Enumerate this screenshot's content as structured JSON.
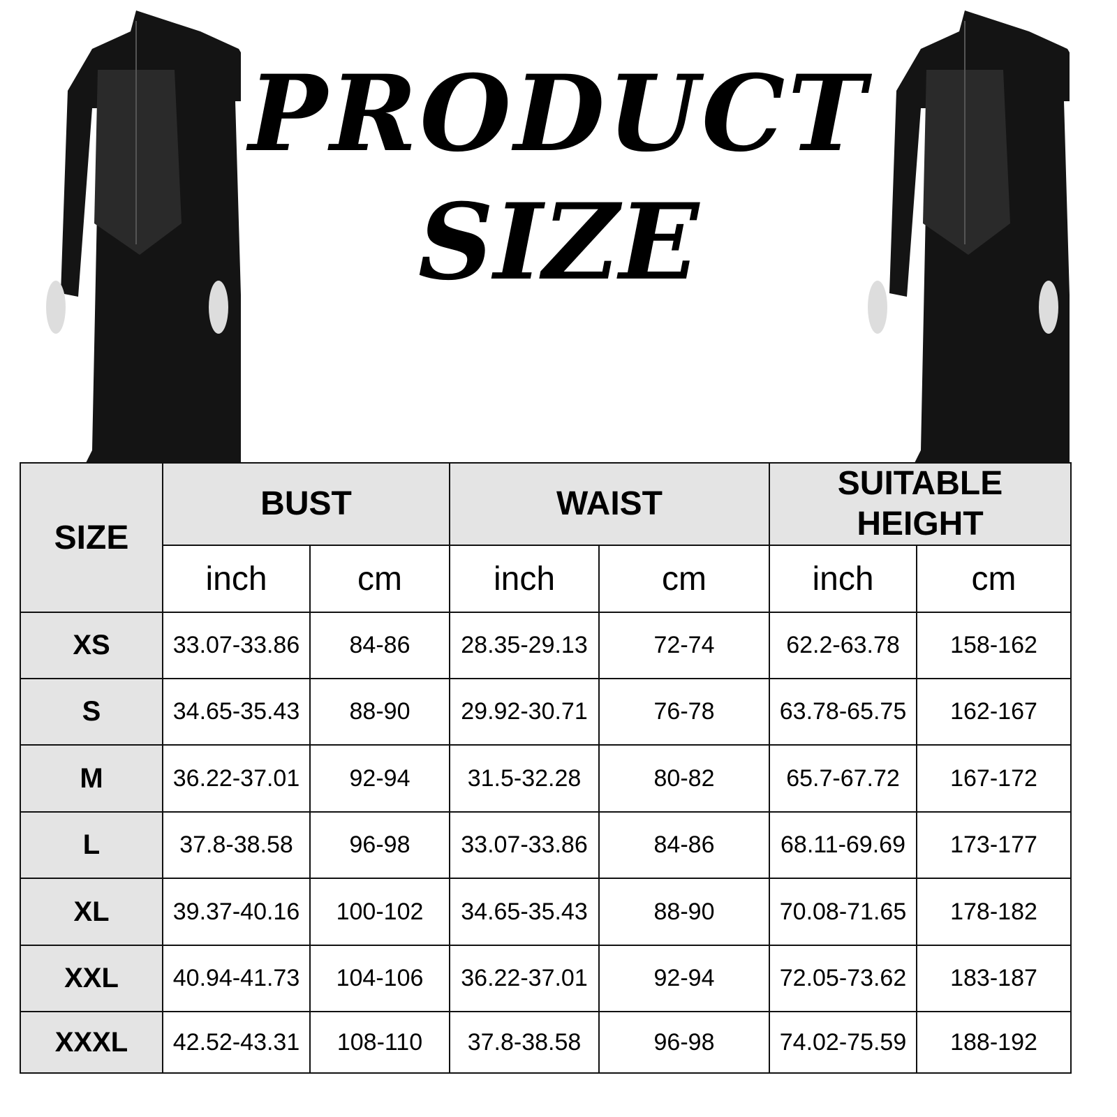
{
  "title": {
    "line1": "PRODUCT",
    "line2": "SIZE"
  },
  "table": {
    "size_header": "SIZE",
    "groups": [
      "BUST",
      "WAIST",
      "SUITABLE HEIGHT"
    ],
    "units": [
      "inch",
      "cm",
      "inch",
      "cm",
      "inch",
      "cm"
    ],
    "rows": [
      {
        "size": "XS",
        "values": [
          "33.07-33.86",
          "84-86",
          "28.35-29.13",
          "72-74",
          "62.2-63.78",
          "158-162"
        ]
      },
      {
        "size": "S",
        "values": [
          "34.65-35.43",
          "88-90",
          "29.92-30.71",
          "76-78",
          "63.78-65.75",
          "162-167"
        ]
      },
      {
        "size": "M",
        "values": [
          "36.22-37.01",
          "92-94",
          "31.5-32.28",
          "80-82",
          "65.7-67.72",
          "167-172"
        ]
      },
      {
        "size": "L",
        "values": [
          "37.8-38.58",
          "96-98",
          "33.07-33.86",
          "84-86",
          "68.11-69.69",
          "173-177"
        ]
      },
      {
        "size": "XL",
        "values": [
          "39.37-40.16",
          "100-102",
          "34.65-35.43",
          "88-90",
          "70.08-71.65",
          "178-182"
        ]
      },
      {
        "size": "XXL",
        "values": [
          "40.94-41.73",
          "104-106",
          "36.22-37.01",
          "92-94",
          "72.05-73.62",
          "183-187"
        ]
      },
      {
        "size": "XXXL",
        "values": [
          "42.52-43.31",
          "108-110",
          "37.8-38.58",
          "96-98",
          "74.02-75.59",
          "188-192"
        ]
      }
    ]
  },
  "colors": {
    "header_bg": "#e4e4e4",
    "border": "#111111",
    "garment": "#141414"
  }
}
